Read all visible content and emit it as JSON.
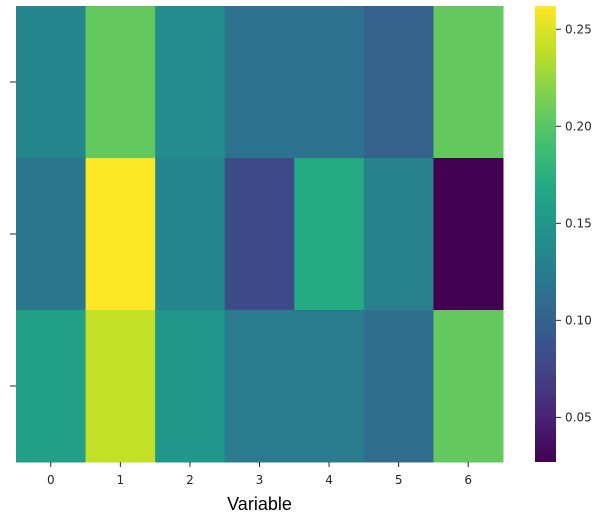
{
  "chart_data": {
    "type": "heatmap",
    "colormap": "viridis",
    "xlabel": "Variable",
    "ylabel": "",
    "x_categories": [
      "0",
      "1",
      "2",
      "3",
      "4",
      "5",
      "6"
    ],
    "y_categories": [
      "",
      "",
      ""
    ],
    "values": [
      [
        0.135,
        0.205,
        0.14,
        0.115,
        0.115,
        0.1,
        0.205
      ],
      [
        0.12,
        0.262,
        0.135,
        0.08,
        0.17,
        0.13,
        0.027
      ],
      [
        0.16,
        0.24,
        0.15,
        0.125,
        0.125,
        0.11,
        0.205
      ]
    ],
    "colorbar": {
      "range": [
        0.027,
        0.262
      ],
      "ticks": [
        0.05,
        0.1,
        0.15,
        0.2,
        0.25
      ],
      "tick_labels": [
        "0.05",
        "0.10",
        "0.15",
        "0.20",
        "0.25"
      ]
    }
  }
}
